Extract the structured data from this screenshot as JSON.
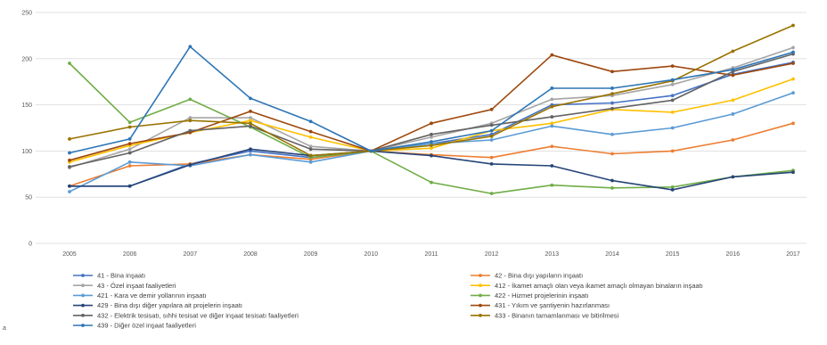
{
  "chart_data": {
    "type": "line",
    "title": "",
    "xlabel": "",
    "ylabel": "",
    "x": [
      "2005",
      "2006",
      "2007",
      "2008",
      "2009",
      "2010",
      "2011",
      "2012",
      "2013",
      "2014",
      "2015",
      "2016",
      "2017"
    ],
    "ylim": [
      0,
      250
    ],
    "yticks": [
      "0",
      "50",
      "100",
      "150",
      "200",
      "250"
    ],
    "grid": true,
    "legend_position": "bottom",
    "series": [
      {
        "name": "41 - Bina inşaatı",
        "color": "#4472c4",
        "values": [
          62,
          62,
          86,
          100,
          93,
          100,
          108,
          118,
          150,
          152,
          160,
          183,
          196
        ]
      },
      {
        "name": "42 - Bina dışı yapıların inşaatı",
        "color": "#ed7d31",
        "values": [
          62,
          84,
          86,
          96,
          91,
          100,
          96,
          93,
          105,
          97,
          100,
          112,
          130
        ]
      },
      {
        "name": "43 - Özel inşaat faaliyetleri",
        "color": "#a5a5a5",
        "values": [
          82,
          102,
          136,
          136,
          105,
          100,
          115,
          130,
          156,
          160,
          172,
          190,
          212
        ]
      },
      {
        "name": "412 - İkamet amaçlı olan veya ikamet amaçlı olmayan binaların inşaatı",
        "color": "#ffc000",
        "values": [
          88,
          106,
          120,
          133,
          115,
          100,
          103,
          122,
          130,
          145,
          142,
          155,
          178
        ]
      },
      {
        "name": "421 - Kara ve demir yollarının inşaatı",
        "color": "#5b9bd5",
        "values": [
          56,
          88,
          84,
          96,
          88,
          100,
          108,
          112,
          127,
          118,
          125,
          140,
          163
        ]
      },
      {
        "name": "422 - Hizmet projelerinin inşaatı",
        "color": "#70ad47",
        "values": [
          195,
          131,
          156,
          126,
          93,
          100,
          66,
          54,
          63,
          60,
          61,
          72,
          79
        ]
      },
      {
        "name": "429 - Bina dışı diğer yapılara ait projelerin inşaatı",
        "color": "#264478",
        "values": [
          62,
          62,
          85,
          102,
          95,
          100,
          95,
          86,
          84,
          68,
          58,
          72,
          77
        ]
      },
      {
        "name": "431 - Yıkım ve şantiyenin hazırlanması",
        "color": "#9e480e",
        "values": [
          90,
          108,
          120,
          143,
          121,
          100,
          130,
          145,
          204,
          186,
          192,
          182,
          195
        ]
      },
      {
        "name": "432 - Elektrik tesisatı, sıhhi tesisat ve diğer inşaat tesisatı faaliyetleri",
        "color": "#636363",
        "values": [
          83,
          98,
          122,
          127,
          102,
          100,
          118,
          128,
          137,
          146,
          155,
          186,
          205
        ]
      },
      {
        "name": "433 - Binanın tamamlanması ve bitirilmesi",
        "color": "#997300",
        "values": [
          113,
          126,
          133,
          130,
          95,
          100,
          106,
          116,
          148,
          162,
          176,
          208,
          236
        ]
      },
      {
        "name": "439 - Diğer özel inşaat faaliyetleri",
        "color": "#2e75b6",
        "values": [
          98,
          113,
          213,
          157,
          132,
          100,
          110,
          122,
          168,
          168,
          177,
          188,
          207
        ]
      }
    ]
  },
  "corner_mark": "a"
}
